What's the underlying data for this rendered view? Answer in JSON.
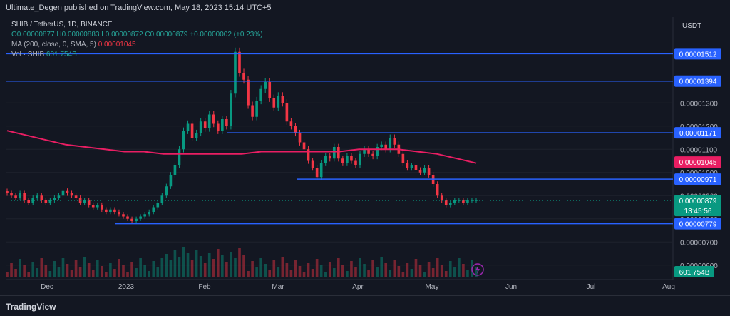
{
  "header": {
    "published": "Ultimate_Degen published on TradingView.com, May 18, 2023 15:14 UTC+5"
  },
  "legend": {
    "symbol": "SHIB / TetherUS, 1D, BINANCE",
    "ohlc": "O0.00000877  H0.00000883  L0.00000872  C0.00000879  +0.00000002 (+0.23%)",
    "ma_label": "MA (200, close, 0, SMA, 5)",
    "ma_value": "0.00001045",
    "vol_label": "Vol · SHIB",
    "vol_value": "601.754B"
  },
  "footer": {
    "brand": "TradingView"
  },
  "chart_data": {
    "type": "candlestick",
    "title": "SHIB / TetherUS, 1D, BINANCE",
    "currency_label": "USDT",
    "ylim": [
      5.5e-06,
      1.67e-05
    ],
    "y_ticks": [
      {
        "value": 1.3e-05,
        "label": "0.00001300"
      },
      {
        "value": 1.2e-05,
        "label": "0.00001200"
      },
      {
        "value": 1.1e-05,
        "label": "0.00001100"
      },
      {
        "value": 1e-05,
        "label": "0.00001000"
      },
      {
        "value": 9e-06,
        "label": "0.00000900"
      },
      {
        "value": 8e-06,
        "label": "0.00000800"
      },
      {
        "value": 7e-06,
        "label": "0.00000700"
      },
      {
        "value": 6e-06,
        "label": "0.00000600"
      }
    ],
    "x_ticks": [
      "Dec",
      "2023",
      "Feb",
      "Mar",
      "Apr",
      "May",
      "Jun",
      "Jul",
      "Aug"
    ],
    "horizontal_levels": [
      {
        "value": 1.512e-05,
        "label": "0.00001512"
      },
      {
        "value": 1.394e-05,
        "label": "0.00001394"
      },
      {
        "value": 1.171e-05,
        "label": "0.00001171"
      },
      {
        "value": 9.71e-06,
        "label": "0.00000971"
      },
      {
        "value": 7.79e-06,
        "label": "0.00000779"
      }
    ],
    "price_labels": [
      {
        "value": 1.045e-05,
        "label": "0.00001045",
        "color": "#e91e63"
      },
      {
        "value": 8.79e-06,
        "label": "0.00000879",
        "color": "#089981",
        "countdown": "13:45:56"
      }
    ],
    "volume_label": "601.754B",
    "close_series_approx": [
      9.1e-06,
      9e-06,
      8.9e-06,
      9.1e-06,
      8.8e-06,
      8.7e-06,
      8.9e-06,
      9e-06,
      8.8e-06,
      8.7e-06,
      8.8e-06,
      8.9e-06,
      9e-06,
      9.2e-06,
      9.1e-06,
      9e-06,
      8.9e-06,
      8.7e-06,
      8.8e-06,
      8.6e-06,
      8.5e-06,
      8.6e-06,
      8.4e-06,
      8.3e-06,
      8.4e-06,
      8.3e-06,
      8.2e-06,
      8.1e-06,
      8e-06,
      7.9e-06,
      8e-06,
      8.1e-06,
      8.2e-06,
      8.3e-06,
      8.5e-06,
      8.7e-06,
      9e-06,
      9.4e-06,
      9.9e-06,
      1.03e-05,
      1.1e-05,
      1.18e-05,
      1.21e-05,
      1.15e-05,
      1.17e-05,
      1.22e-05,
      1.19e-05,
      1.25e-05,
      1.21e-05,
      1.18e-05,
      1.23e-05,
      1.2e-05,
      1.34e-05,
      1.52e-05,
      1.43e-05,
      1.4e-05,
      1.29e-05,
      1.24e-05,
      1.31e-05,
      1.36e-05,
      1.39e-05,
      1.32e-05,
      1.28e-05,
      1.33e-05,
      1.3e-05,
      1.22e-05,
      1.2e-05,
      1.17e-05,
      1.13e-05,
      1.1e-05,
      1.05e-05,
      1.02e-05,
      9.8e-06,
      1.04e-05,
      1.07e-05,
      1.06e-05,
      1.11e-05,
      1.06e-05,
      1.04e-05,
      1.07e-05,
      1.05e-05,
      1.03e-05,
      1.08e-05,
      1.1e-05,
      1.08e-05,
      1.07e-05,
      1.11e-05,
      1.12e-05,
      1.1e-05,
      1.15e-05,
      1.12e-05,
      1.08e-05,
      1.04e-05,
      1.02e-05,
      1.03e-05,
      1.01e-05,
      1e-05,
      1.02e-05,
      9.9e-06,
      9.5e-06,
      9e-06,
      8.8e-06,
      8.6e-06,
      8.7e-06,
      8.8e-06,
      8.8e-06,
      8.7e-06,
      8.8e-06,
      8.8e-06,
      8.8e-06
    ],
    "ma200_approx": [
      1.18e-05,
      1.16e-05,
      1.14e-05,
      1.12e-05,
      1.11e-05,
      1.1e-05,
      1.09e-05,
      1.09e-05,
      1.08e-05,
      1.08e-05,
      1.08e-05,
      1.08e-05,
      1.08e-05,
      1.09e-05,
      1.09e-05,
      1.09e-05,
      1.09e-05,
      1.09e-05,
      1.1e-05,
      1.1e-05,
      1.1e-05,
      1.09e-05,
      1.08e-05,
      1.06e-05,
      1.04e-05
    ]
  }
}
